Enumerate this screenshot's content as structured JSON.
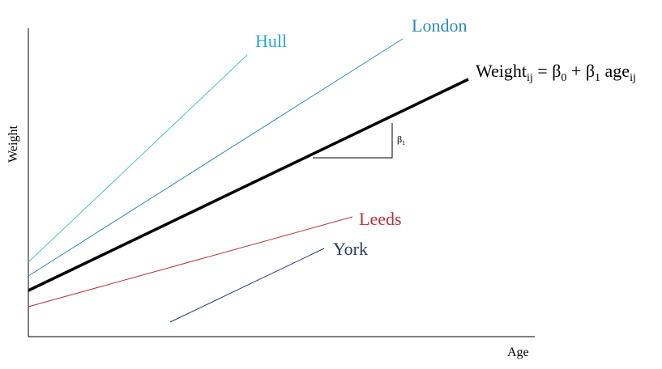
{
  "axes": {
    "x_label": "Age",
    "y_label": "Weight",
    "color": "#000000"
  },
  "lines": [
    {
      "id": "hull",
      "label": "Hull",
      "color": "#47c8b4"
    },
    {
      "id": "london",
      "label": "London",
      "color": "#2e8ab8"
    },
    {
      "id": "average",
      "label": "",
      "color": "#000000"
    },
    {
      "id": "leeds",
      "label": "Leeds",
      "color": "#b5343b"
    },
    {
      "id": "york",
      "label": "York",
      "color": "#243a6b"
    }
  ],
  "label_colors": {
    "hull": "#2aa7d6",
    "london": "#2e8ab8",
    "leeds": "#b5343b",
    "york": "#243a6b"
  },
  "equation": {
    "lhs": "Weight",
    "lhs_sub": "ij",
    "eq": " = ",
    "b0": "β",
    "b0_sub": "0",
    "plus": " + ",
    "b1": "β",
    "b1_sub": "1",
    "age": " age",
    "age_sub": "ij"
  },
  "slope_marker": {
    "symbol": "β",
    "sub": "1"
  }
}
